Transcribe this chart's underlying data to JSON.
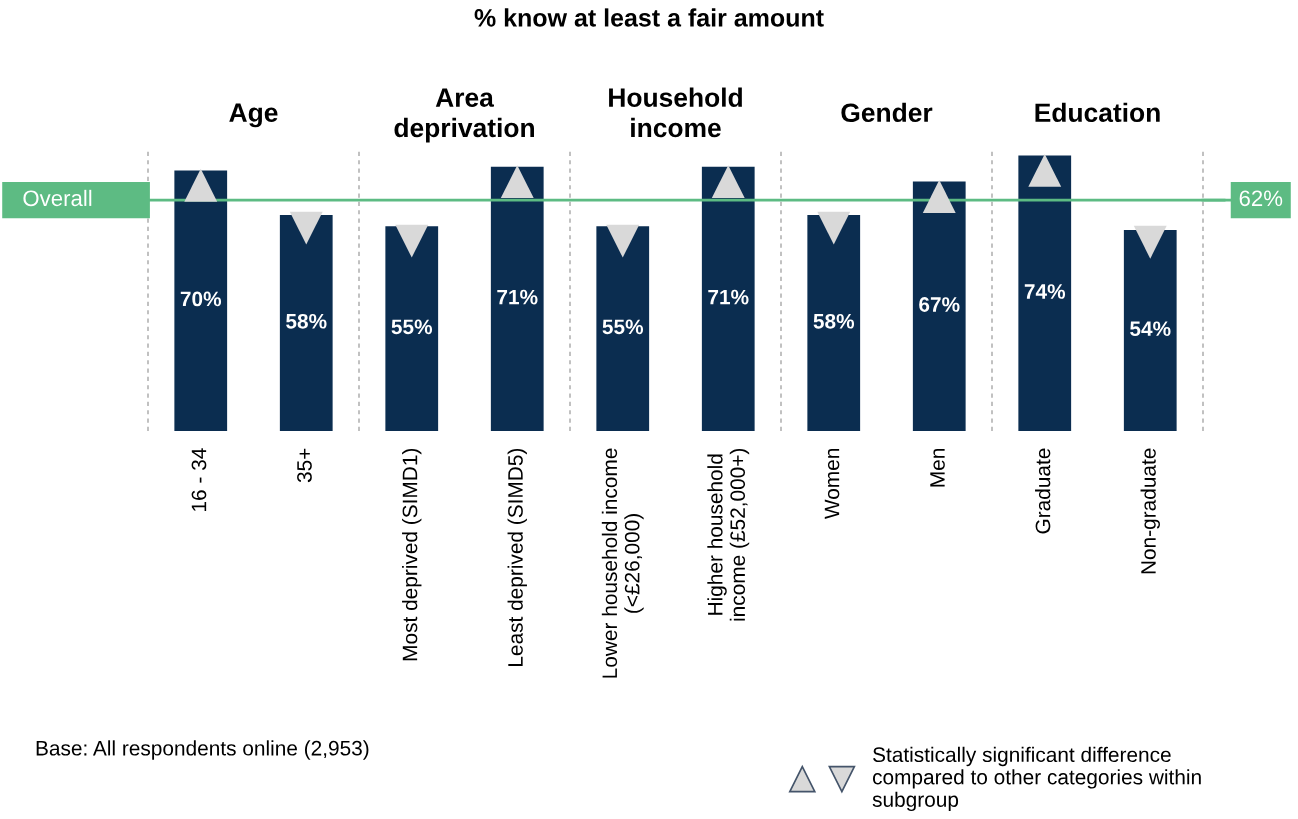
{
  "chart_data": {
    "type": "bar",
    "title": "% know at least a fair amount",
    "categories": [
      "16 - 34",
      "35+",
      "Most deprived (SIMD1)",
      "Least deprived (SIMD5)",
      "Lower household income\n(<£26,000)",
      "Higher household\nincome (£52,000+)",
      "Women",
      "Men",
      "Graduate",
      "Non-graduate"
    ],
    "series": [
      {
        "color": "#0b2d50",
        "values": [
          70,
          58,
          55,
          71,
          55,
          71,
          58,
          67,
          74,
          54
        ],
        "value_labels": [
          "70%",
          "58%",
          "55%",
          "71%",
          "55%",
          "71%",
          "58%",
          "67%",
          "74%",
          "54%"
        ]
      },
      {
        "type": "scatter",
        "marker": "triangle",
        "name": "Statistically significant difference\ncompared to other categories within\nsubgroup",
        "color": "#d9d9d9",
        "values": [
          66,
          null,
          null,
          67,
          null,
          67,
          null,
          63,
          70,
          null
        ]
      },
      {
        "type": "scatter",
        "marker": "triangle_down",
        "color": "#d9d9d9",
        "values": [
          null,
          54.5,
          51,
          null,
          51,
          null,
          54.5,
          null,
          null,
          50.7
        ]
      }
    ],
    "ref_lines": [
      {
        "axis": "y",
        "value": 62,
        "label": "Overall",
        "color": "#5dbb83"
      }
    ],
    "annotations": [
      "Age",
      "Area\ndeprivation",
      "Household\nincome",
      "Gender",
      "Education",
      "62%",
      "Base: All respondents online (2,953)"
    ],
    "legend": "bottom"
  }
}
